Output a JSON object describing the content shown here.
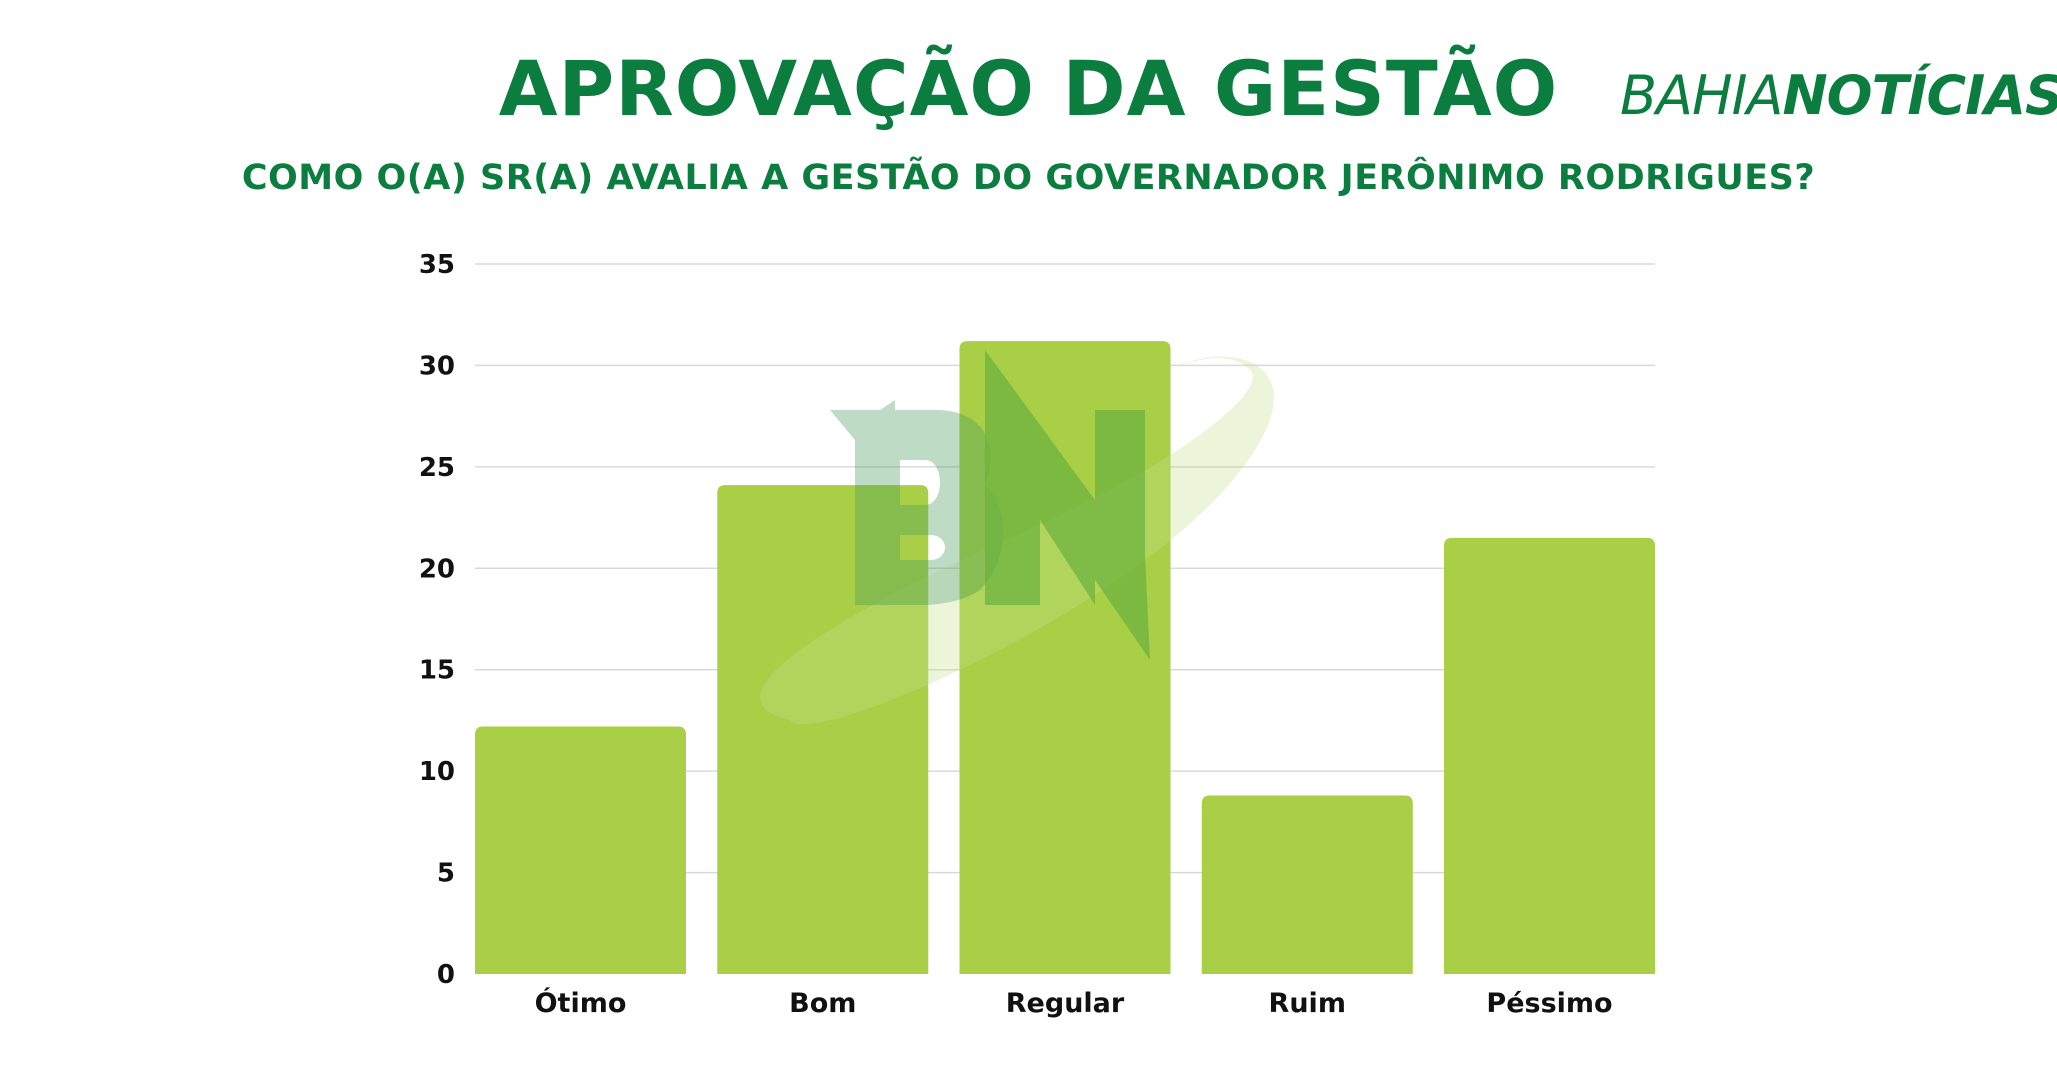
{
  "header": {
    "title": "APROVAÇÃO DA GESTÃO",
    "subtitle": "COMO O(A) SR(A) AVALIA A GESTÃO DO GOVERNADOR JERÔNIMO RODRIGUES?",
    "logo_light": "BAHIA",
    "logo_heavy": "NOTÍCIAS"
  },
  "watermark": {
    "letters": "BN"
  },
  "colors": {
    "title": "#0b7d3e",
    "bar": "#a8cf45",
    "grid": "#d9d9d9",
    "watermark_dark": "#0b7d3e",
    "watermark_light": "#a8cf45"
  },
  "chart_data": {
    "type": "bar",
    "title": "APROVAÇÃO DA GESTÃO",
    "subtitle": "COMO O(A) SR(A) AVALIA A GESTÃO DO GOVERNADOR JERÔNIMO RODRIGUES?",
    "categories": [
      "Ótimo",
      "Bom",
      "Regular",
      "Ruim",
      "Péssimo"
    ],
    "values": [
      12.2,
      24.1,
      31.2,
      8.8,
      21.5
    ],
    "xlabel": "",
    "ylabel": "",
    "ylim": [
      0,
      35
    ],
    "yticks": [
      0,
      5,
      10,
      15,
      20,
      25,
      30,
      35
    ],
    "grid": true,
    "legend": "none"
  }
}
